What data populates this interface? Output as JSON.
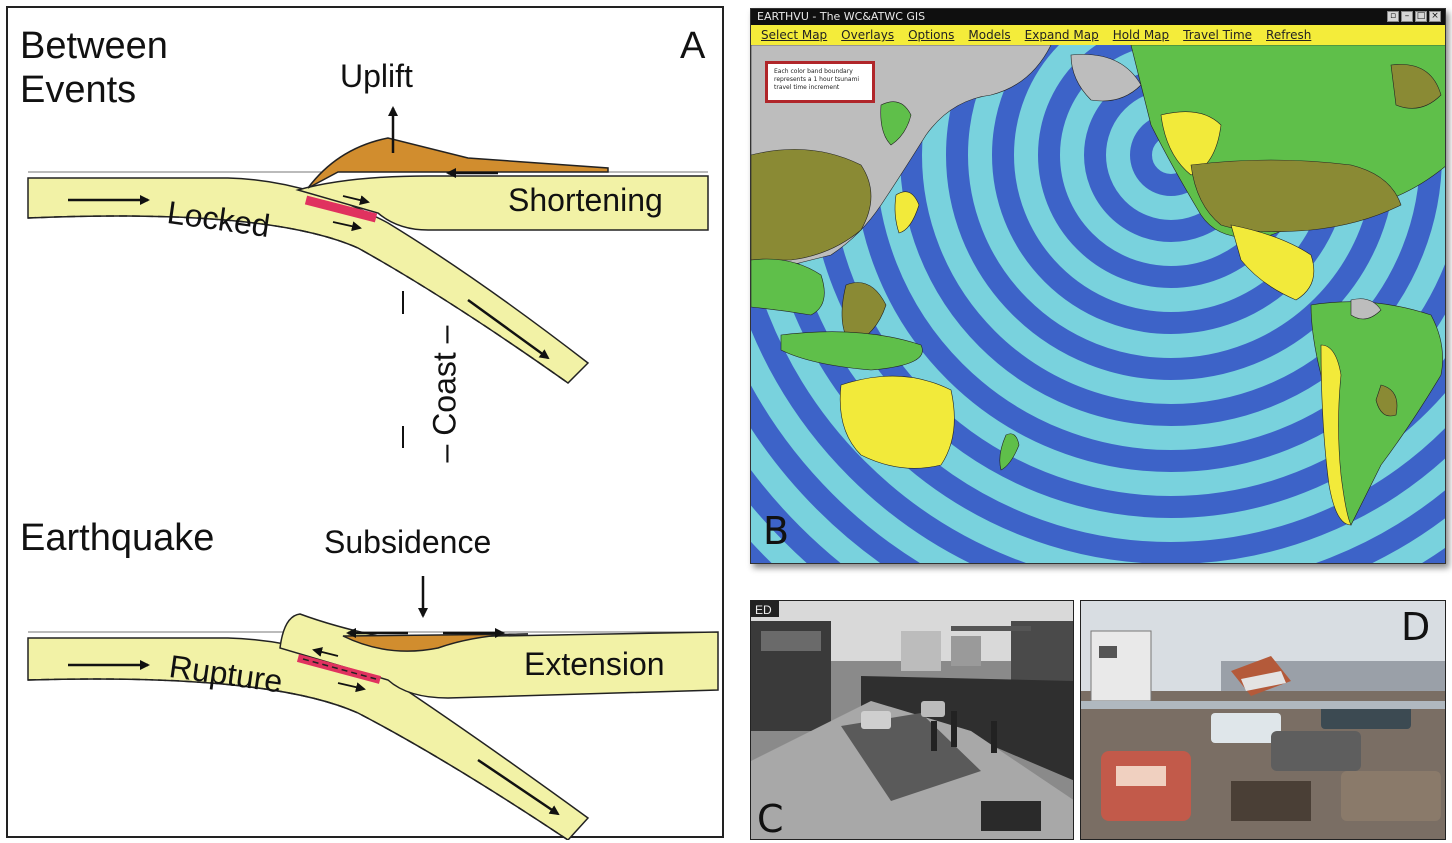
{
  "panel_a": {
    "letter": "A",
    "top": {
      "heading": "Between\nEvents",
      "heading_line1": "Between",
      "heading_line2": "Events",
      "uplift": "Uplift",
      "locked": "Locked",
      "shortening": "Shortening",
      "coast": "– Coast –"
    },
    "bottom": {
      "heading": "Earthquake",
      "subsidence": "Subsidence",
      "rupture": "Rupture",
      "extension": "Extension"
    }
  },
  "panel_b": {
    "letter": "B",
    "window_title": "EARTHVU - The WC&ATWC GIS",
    "window_controls": [
      "▫",
      "–",
      "□",
      "×"
    ],
    "menu": [
      "Select Map",
      "Overlays",
      "Options",
      "Models",
      "Expand Map",
      "Hold Map",
      "Travel Time",
      "Refresh"
    ],
    "legend_text": "Each color band boundary represents a 1 hour tsunami travel time increment",
    "colors": {
      "ocean": "#79d2dd",
      "band": "#3d63c8",
      "menubar": "#f4ec3a",
      "land_green": "#5fbf4a",
      "land_yellow": "#f2ea3a",
      "land_olive": "#8a8a34",
      "land_grey": "#bdbdbd"
    }
  },
  "panel_c": {
    "letter": "C"
  },
  "panel_d": {
    "letter": "D"
  },
  "colors": {
    "plate": "#f2f2a6",
    "wedge": "#d18d2e",
    "fault": "#e0325f"
  }
}
